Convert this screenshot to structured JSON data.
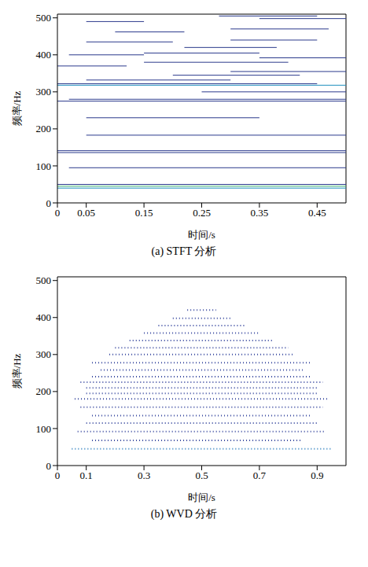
{
  "chart_data": [
    {
      "type": "line",
      "title": "(a) STFT 分析",
      "x_label": "时间/s",
      "y_label": "频率/Hz",
      "xlim": [
        0,
        0.5
      ],
      "xticks": [
        0,
        0.05,
        0.15,
        0.25,
        0.35,
        0.45
      ],
      "ylim": [
        0,
        510
      ],
      "yticks": [
        0,
        100,
        200,
        300,
        400,
        500
      ],
      "line_style": "solid",
      "series": [
        {
          "color": "#3cb371",
          "x": [
            0,
            0.5
          ],
          "values": [
            45,
            45
          ]
        },
        {
          "color": "#1f8fbf",
          "x": [
            0,
            0.5
          ],
          "values": [
            40,
            40
          ]
        },
        {
          "color": "#2b3a8c",
          "x": [
            0,
            0.5
          ],
          "values": [
            50,
            50
          ]
        },
        {
          "color": "#2b3a8c",
          "x": [
            0.02,
            0.5
          ],
          "values": [
            95,
            95
          ]
        },
        {
          "color": "#2b3a8c",
          "x": [
            0,
            0.5
          ],
          "values": [
            136,
            136
          ]
        },
        {
          "color": "#2b3a8c",
          "x": [
            0,
            0.5
          ],
          "values": [
            141,
            141
          ]
        },
        {
          "color": "#2b3a8c",
          "x": [
            0.05,
            0.5
          ],
          "values": [
            183,
            183
          ]
        },
        {
          "color": "#2b3a8c",
          "x": [
            0.05,
            0.35
          ],
          "values": [
            230,
            230
          ]
        },
        {
          "color": "#2b3a8c",
          "x": [
            0,
            0.5
          ],
          "values": [
            275,
            275
          ]
        },
        {
          "color": "#2b3a8c",
          "x": [
            0.02,
            0.5
          ],
          "values": [
            280,
            280
          ]
        },
        {
          "color": "#2b3a8c",
          "x": [
            0.25,
            0.5
          ],
          "values": [
            300,
            300
          ]
        },
        {
          "color": "#1f8fbf",
          "x": [
            0,
            0.5
          ],
          "values": [
            318,
            318
          ]
        },
        {
          "color": "#2b3a8c",
          "x": [
            0,
            0.45
          ],
          "values": [
            322,
            322
          ]
        },
        {
          "color": "#2b3a8c",
          "x": [
            0.05,
            0.3
          ],
          "values": [
            332,
            332
          ]
        },
        {
          "color": "#2b3a8c",
          "x": [
            0.2,
            0.42
          ],
          "values": [
            345,
            345
          ]
        },
        {
          "color": "#2b3a8c",
          "x": [
            0.3,
            0.5
          ],
          "values": [
            355,
            355
          ]
        },
        {
          "color": "#2b3a8c",
          "x": [
            0,
            0.12
          ],
          "values": [
            370,
            370
          ]
        },
        {
          "color": "#2b3a8c",
          "x": [
            0.15,
            0.4
          ],
          "values": [
            380,
            380
          ]
        },
        {
          "color": "#2b3a8c",
          "x": [
            0.35,
            0.5
          ],
          "values": [
            392,
            392
          ]
        },
        {
          "color": "#2b3a8c",
          "x": [
            0.02,
            0.15
          ],
          "values": [
            400,
            400
          ]
        },
        {
          "color": "#2b3a8c",
          "x": [
            0.15,
            0.35
          ],
          "values": [
            405,
            405
          ]
        },
        {
          "color": "#2b3a8c",
          "x": [
            0.22,
            0.38
          ],
          "values": [
            420,
            420
          ]
        },
        {
          "color": "#2b3a8c",
          "x": [
            0.05,
            0.2
          ],
          "values": [
            435,
            435
          ]
        },
        {
          "color": "#2b3a8c",
          "x": [
            0.3,
            0.45
          ],
          "values": [
            440,
            440
          ]
        },
        {
          "color": "#2b3a8c",
          "x": [
            0.1,
            0.22
          ],
          "values": [
            462,
            462
          ]
        },
        {
          "color": "#2b3a8c",
          "x": [
            0.3,
            0.47
          ],
          "values": [
            470,
            470
          ]
        },
        {
          "color": "#2b3a8c",
          "x": [
            0.05,
            0.15
          ],
          "values": [
            490,
            490
          ]
        },
        {
          "color": "#2b3a8c",
          "x": [
            0.35,
            0.5
          ],
          "values": [
            498,
            498
          ]
        },
        {
          "color": "#2b3a8c",
          "x": [
            0.28,
            0.45
          ],
          "values": [
            505,
            505
          ]
        }
      ]
    },
    {
      "type": "line",
      "title": "(b) WVD 分析",
      "x_label": "时间/s",
      "y_label": "频率/Hz",
      "xlim": [
        0,
        1
      ],
      "xticks": [
        0,
        0.1,
        0.3,
        0.5,
        0.7,
        0.9
      ],
      "ylim": [
        0,
        510
      ],
      "yticks": [
        0,
        100,
        200,
        300,
        400,
        500
      ],
      "line_style": "dotted",
      "series": [
        {
          "color": "#2f7fbf",
          "x": [
            0.05,
            0.95
          ],
          "values": [
            45,
            45
          ]
        },
        {
          "color": "#3a4aa0",
          "x": [
            0.12,
            0.85
          ],
          "values": [
            68,
            68
          ]
        },
        {
          "color": "#3a4aa0",
          "x": [
            0.07,
            0.93
          ],
          "values": [
            92,
            92
          ]
        },
        {
          "color": "#3a4aa0",
          "x": [
            0.1,
            0.9
          ],
          "values": [
            115,
            115
          ]
        },
        {
          "color": "#3a4aa0",
          "x": [
            0.12,
            0.88
          ],
          "values": [
            135,
            135
          ]
        },
        {
          "color": "#3a4aa0",
          "x": [
            0.08,
            0.92
          ],
          "values": [
            158,
            158
          ]
        },
        {
          "color": "#3a4aa0",
          "x": [
            0.06,
            0.94
          ],
          "values": [
            180,
            180
          ]
        },
        {
          "color": "#3a4aa0",
          "x": [
            0.1,
            0.9
          ],
          "values": [
            195,
            195
          ]
        },
        {
          "color": "#3a4aa0",
          "x": [
            0.1,
            0.9
          ],
          "values": [
            210,
            210
          ]
        },
        {
          "color": "#3a4aa0",
          "x": [
            0.08,
            0.92
          ],
          "values": [
            225,
            225
          ]
        },
        {
          "color": "#3a4aa0",
          "x": [
            0.12,
            0.88
          ],
          "values": [
            240,
            240
          ]
        },
        {
          "color": "#3a4aa0",
          "x": [
            0.15,
            0.85
          ],
          "values": [
            258,
            258
          ]
        },
        {
          "color": "#3a4aa0",
          "x": [
            0.12,
            0.88
          ],
          "values": [
            278,
            278
          ]
        },
        {
          "color": "#3a4aa0",
          "x": [
            0.18,
            0.82
          ],
          "values": [
            300,
            300
          ]
        },
        {
          "color": "#3a4aa0",
          "x": [
            0.2,
            0.8
          ],
          "values": [
            318,
            318
          ]
        },
        {
          "color": "#3a4aa0",
          "x": [
            0.25,
            0.75
          ],
          "values": [
            338,
            338
          ]
        },
        {
          "color": "#3a4aa0",
          "x": [
            0.3,
            0.7
          ],
          "values": [
            358,
            358
          ]
        },
        {
          "color": "#3a4aa0",
          "x": [
            0.35,
            0.65
          ],
          "values": [
            378,
            378
          ]
        },
        {
          "color": "#3a4aa0",
          "x": [
            0.4,
            0.6
          ],
          "values": [
            398,
            398
          ]
        },
        {
          "color": "#3a4aa0",
          "x": [
            0.45,
            0.55
          ],
          "values": [
            420,
            420
          ]
        }
      ]
    }
  ]
}
